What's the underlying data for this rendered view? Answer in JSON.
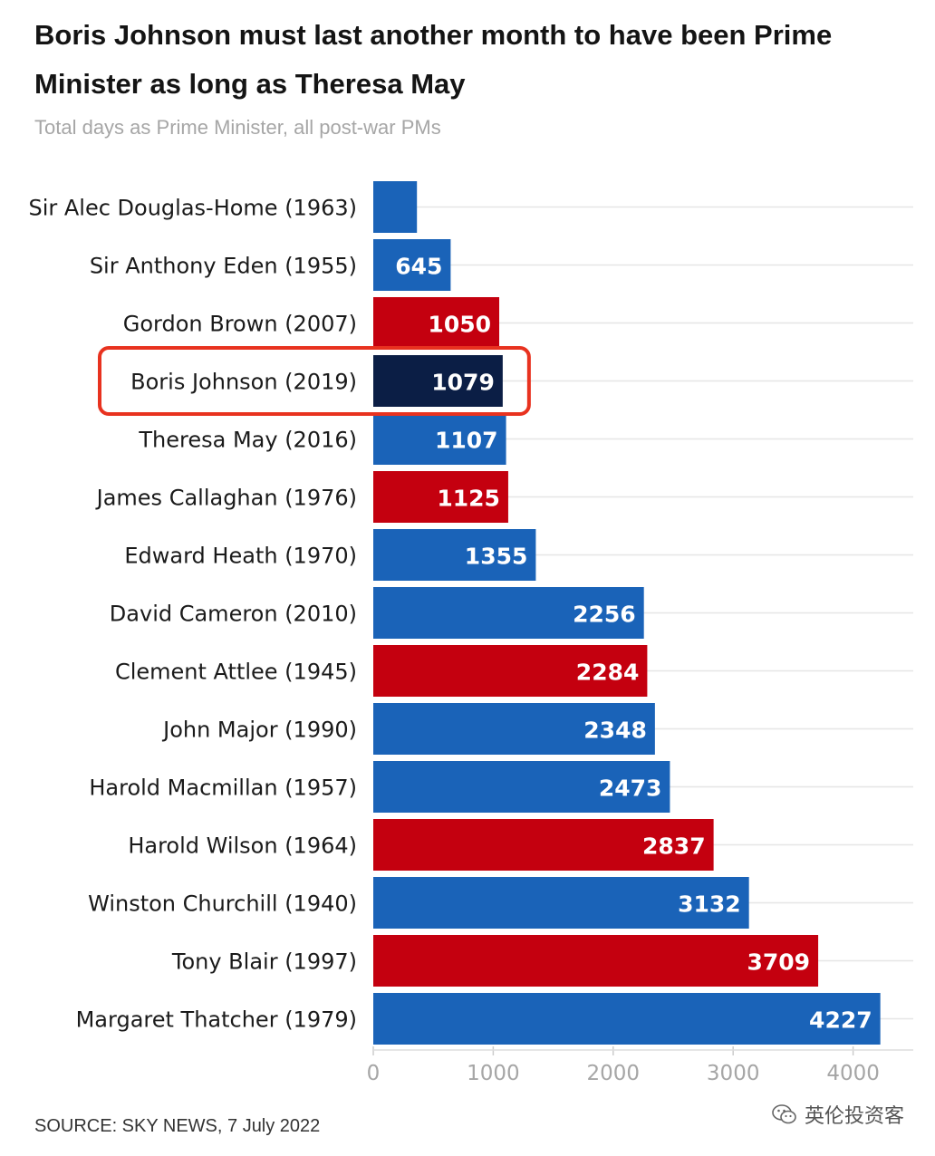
{
  "title": "Boris Johnson must last another month to have been Prime Minister as long as Theresa May",
  "subtitle": "Total days as Prime Minister, all post-war PMs",
  "source": "SOURCE: SKY NEWS, 7 July 2022",
  "watermark": "英伦投资客",
  "colors": {
    "conservative": "#1a63b8",
    "labour": "#c4000f",
    "highlight": "#0b1e45",
    "highlight_box": "#e8321f",
    "grid": "#e6e6e6",
    "tick": "#a6a6a6"
  },
  "chart_data": {
    "type": "bar",
    "orientation": "horizontal",
    "title": "Boris Johnson must last another month to have been Prime Minister as long as Theresa May",
    "subtitle": "Total days as Prime Minister, all post-war PMs",
    "xlim": [
      0,
      4500
    ],
    "xticks": [
      "0",
      "1000",
      "2000",
      "3000",
      "4000"
    ],
    "grid": true,
    "highlighted": "Boris Johnson (2019)",
    "categories": [
      "Sir Alec Douglas-Home (1963)",
      "Sir Anthony Eden (1955)",
      "Gordon Brown (2007)",
      "Boris Johnson (2019)",
      "Theresa May (2016)",
      "James Callaghan (1976)",
      "Edward Heath (1970)",
      "David Cameron (2010)",
      "Clement Attlee (1945)",
      "John Major (1990)",
      "Harold Macmillan (1957)",
      "Harold Wilson (1964)",
      "Winston Churchill (1940)",
      "Tony Blair (1997)",
      "Margaret Thatcher (1979)"
    ],
    "values": [
      364,
      645,
      1050,
      1079,
      1107,
      1125,
      1355,
      2256,
      2284,
      2348,
      2473,
      2837,
      3132,
      3709,
      4227
    ],
    "value_labels": [
      "",
      "645",
      "1050",
      "1079",
      "1107",
      "1125",
      "1355",
      "2256",
      "2284",
      "2348",
      "2473",
      "2837",
      "3132",
      "3709",
      "4227"
    ],
    "party": [
      "conservative",
      "conservative",
      "labour",
      "highlight",
      "conservative",
      "labour",
      "conservative",
      "conservative",
      "labour",
      "conservative",
      "conservative",
      "labour",
      "conservative",
      "labour",
      "conservative"
    ]
  }
}
